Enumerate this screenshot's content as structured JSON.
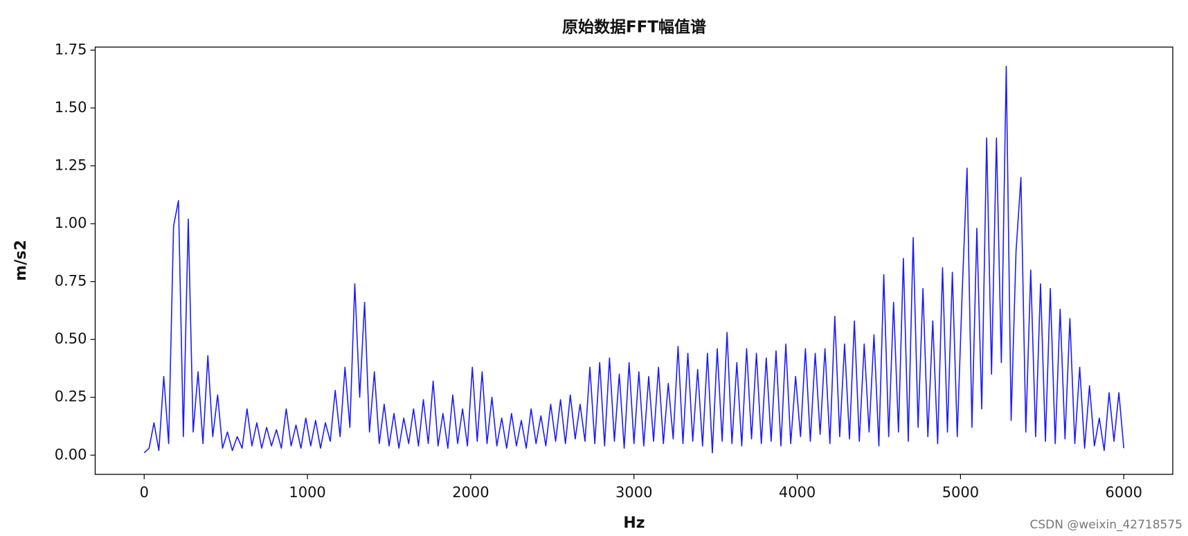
{
  "chart_data": {
    "type": "line",
    "title": "原始数据FFT幅值谱",
    "xlabel": "Hz",
    "ylabel": "m/s2",
    "watermark": "CSDN @weixin_42718575",
    "color": "#1a1aff",
    "xlim": [
      -300,
      6300
    ],
    "xticks": [
      0,
      1000,
      2000,
      3000,
      4000,
      5000,
      6000
    ],
    "ylim": [
      -0.083,
      1.763
    ],
    "yticks": [
      {
        "value": 0,
        "label": "0.00"
      },
      {
        "value": 0.25,
        "label": "0.25"
      },
      {
        "value": 0.5,
        "label": "0.50"
      },
      {
        "value": 0.75,
        "label": "0.75"
      },
      {
        "value": 1,
        "label": "1.00"
      },
      {
        "value": 1.25,
        "label": "1.25"
      },
      {
        "value": 1.5,
        "label": "1.50"
      },
      {
        "value": 1.75,
        "label": "1.75"
      }
    ],
    "x": [
      0,
      30,
      60,
      90,
      120,
      150,
      180,
      210,
      240,
      270,
      300,
      330,
      360,
      390,
      420,
      450,
      480,
      510,
      540,
      570,
      600,
      630,
      660,
      690,
      720,
      750,
      780,
      810,
      840,
      870,
      900,
      930,
      960,
      990,
      1020,
      1050,
      1080,
      1110,
      1140,
      1170,
      1200,
      1230,
      1260,
      1290,
      1320,
      1350,
      1380,
      1410,
      1440,
      1470,
      1500,
      1530,
      1560,
      1590,
      1620,
      1650,
      1680,
      1710,
      1740,
      1770,
      1800,
      1830,
      1860,
      1890,
      1920,
      1950,
      1980,
      2010,
      2040,
      2070,
      2100,
      2130,
      2160,
      2190,
      2220,
      2250,
      2280,
      2310,
      2340,
      2370,
      2400,
      2430,
      2460,
      2490,
      2520,
      2550,
      2580,
      2610,
      2640,
      2670,
      2700,
      2730,
      2760,
      2790,
      2820,
      2850,
      2880,
      2910,
      2940,
      2970,
      3000,
      3030,
      3060,
      3090,
      3120,
      3150,
      3180,
      3210,
      3240,
      3270,
      3300,
      3330,
      3360,
      3390,
      3420,
      3450,
      3480,
      3510,
      3540,
      3570,
      3600,
      3630,
      3660,
      3690,
      3720,
      3750,
      3780,
      3810,
      3840,
      3870,
      3900,
      3930,
      3960,
      3990,
      4020,
      4050,
      4080,
      4110,
      4140,
      4170,
      4200,
      4230,
      4260,
      4290,
      4320,
      4350,
      4380,
      4410,
      4440,
      4470,
      4500,
      4530,
      4560,
      4590,
      4620,
      4650,
      4680,
      4710,
      4740,
      4770,
      4800,
      4830,
      4860,
      4890,
      4920,
      4950,
      4980,
      5010,
      5040,
      5070,
      5100,
      5130,
      5160,
      5190,
      5220,
      5250,
      5280,
      5310,
      5340,
      5370,
      5400,
      5430,
      5460,
      5490,
      5520,
      5550,
      5580,
      5610,
      5640,
      5670,
      5700,
      5730,
      5760,
      5790,
      5820,
      5850,
      5880,
      5910,
      5940,
      5970,
      6000
    ],
    "values": [
      0.01,
      0.03,
      0.14,
      0.02,
      0.34,
      0.05,
      0.99,
      1.1,
      0.08,
      1.02,
      0.1,
      0.36,
      0.05,
      0.43,
      0.08,
      0.26,
      0.03,
      0.1,
      0.02,
      0.08,
      0.03,
      0.2,
      0.04,
      0.14,
      0.03,
      0.12,
      0.04,
      0.11,
      0.03,
      0.2,
      0.04,
      0.13,
      0.03,
      0.16,
      0.04,
      0.15,
      0.03,
      0.14,
      0.06,
      0.28,
      0.08,
      0.38,
      0.12,
      0.74,
      0.25,
      0.66,
      0.1,
      0.36,
      0.05,
      0.22,
      0.04,
      0.18,
      0.03,
      0.16,
      0.05,
      0.2,
      0.04,
      0.24,
      0.05,
      0.32,
      0.04,
      0.18,
      0.03,
      0.26,
      0.05,
      0.2,
      0.04,
      0.38,
      0.06,
      0.36,
      0.05,
      0.25,
      0.04,
      0.16,
      0.03,
      0.18,
      0.04,
      0.15,
      0.03,
      0.2,
      0.05,
      0.17,
      0.04,
      0.22,
      0.06,
      0.24,
      0.05,
      0.26,
      0.07,
      0.22,
      0.06,
      0.38,
      0.05,
      0.4,
      0.04,
      0.42,
      0.06,
      0.35,
      0.03,
      0.4,
      0.05,
      0.36,
      0.04,
      0.34,
      0.06,
      0.38,
      0.05,
      0.31,
      0.07,
      0.47,
      0.05,
      0.44,
      0.06,
      0.37,
      0.04,
      0.44,
      0.01,
      0.46,
      0.06,
      0.53,
      0.05,
      0.4,
      0.04,
      0.46,
      0.07,
      0.44,
      0.05,
      0.42,
      0.06,
      0.45,
      0.04,
      0.48,
      0.05,
      0.34,
      0.08,
      0.46,
      0.06,
      0.44,
      0.09,
      0.46,
      0.05,
      0.6,
      0.08,
      0.48,
      0.07,
      0.58,
      0.06,
      0.48,
      0.1,
      0.52,
      0.04,
      0.78,
      0.08,
      0.66,
      0.1,
      0.85,
      0.06,
      0.94,
      0.12,
      0.72,
      0.08,
      0.58,
      0.05,
      0.81,
      0.1,
      0.79,
      0.08,
      0.7,
      1.24,
      0.12,
      0.98,
      0.2,
      1.37,
      0.35,
      1.37,
      0.4,
      1.68,
      0.15,
      0.88,
      1.2,
      0.1,
      0.8,
      0.08,
      0.74,
      0.06,
      0.72,
      0.05,
      0.63,
      0.07,
      0.59,
      0.05,
      0.38,
      0.03,
      0.3,
      0.04,
      0.16,
      0.02,
      0.27,
      0.06,
      0.27,
      0.03
    ]
  }
}
